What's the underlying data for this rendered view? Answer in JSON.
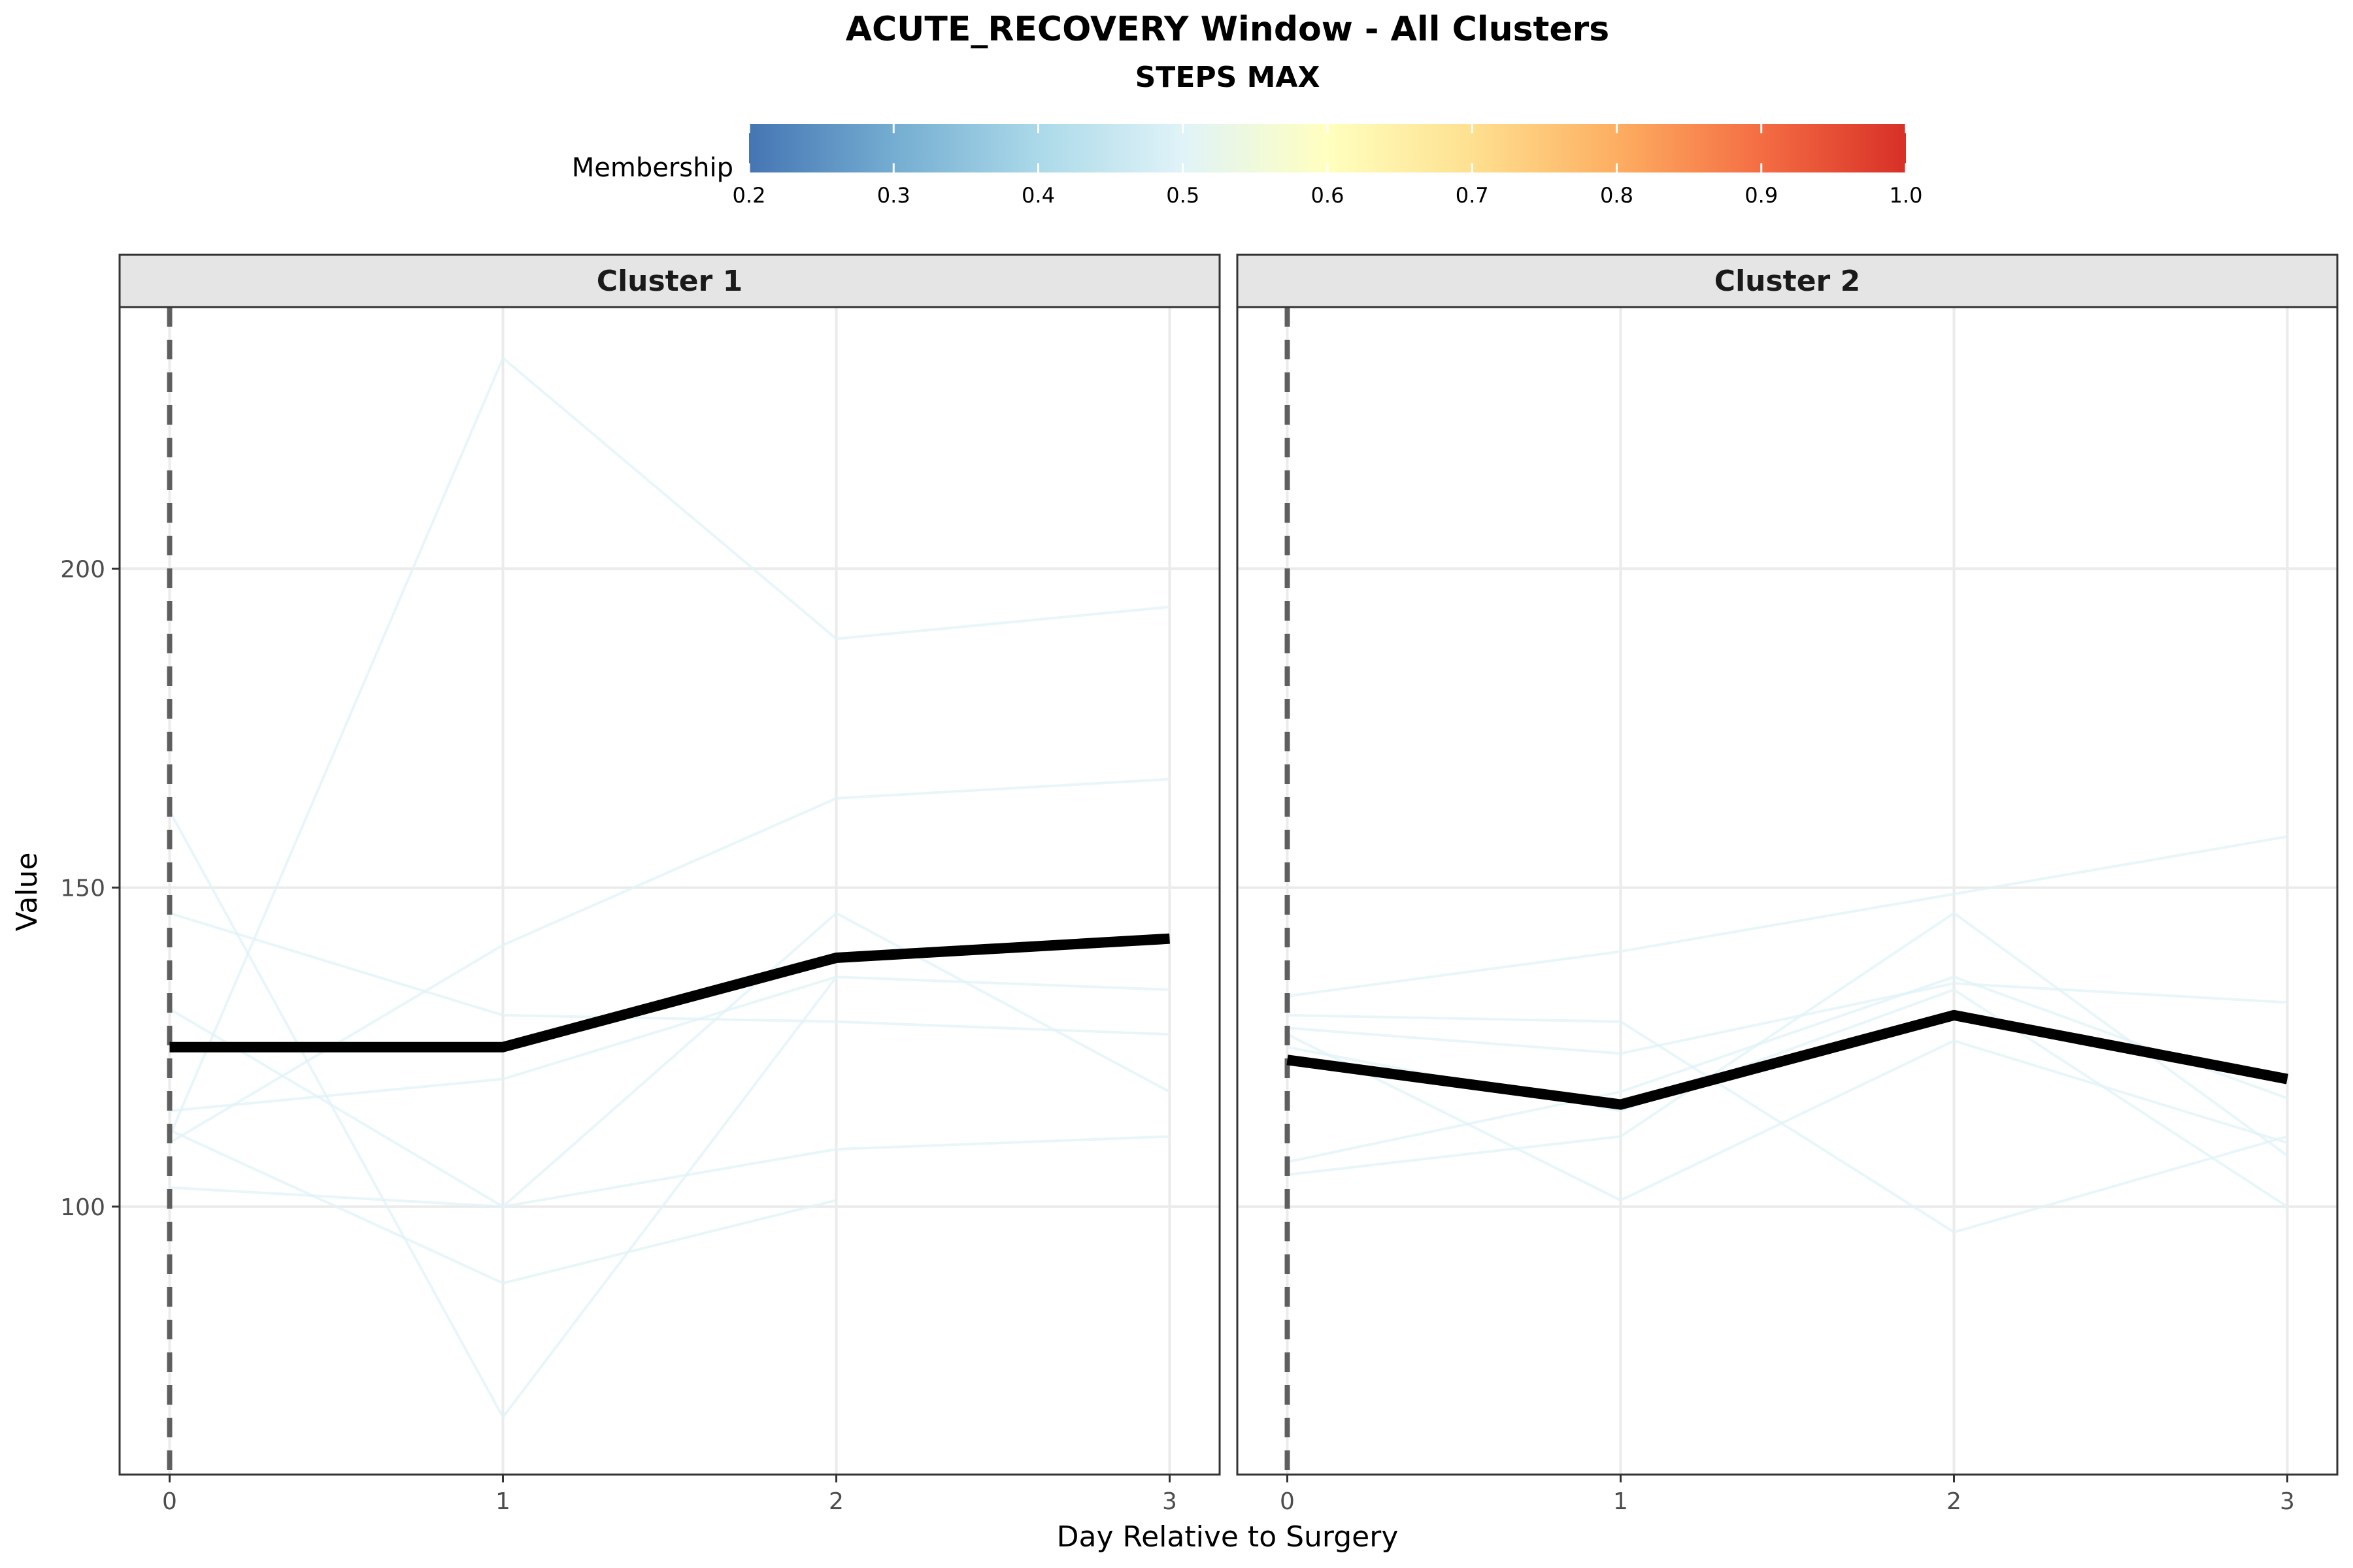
{
  "chart_data": {
    "type": "line",
    "title": "ACUTE_RECOVERY Window - All Clusters",
    "subtitle": "STEPS MAX",
    "xlabel": "Day Relative to Surgery",
    "ylabel": "Value",
    "xlim": [
      -0.15,
      3.15
    ],
    "ylim": [
      58,
      241
    ],
    "x_ticks": [
      0,
      1,
      2,
      3
    ],
    "y_ticks": [
      100,
      150,
      200
    ],
    "grid": true,
    "reference_line": {
      "x": 0,
      "style": "dashed",
      "color": "#5f5f5f"
    },
    "legend": {
      "title": "Membership",
      "position": "top",
      "type": "colorbar",
      "range": [
        0.2,
        1.0
      ],
      "ticks": [
        "0.2",
        "0.3",
        "0.4",
        "0.5",
        "0.6",
        "0.7",
        "0.8",
        "0.9",
        "1.0"
      ],
      "colors": [
        "#4575b4",
        "#74add1",
        "#abd9e9",
        "#e0f3f8",
        "#ffffbf",
        "#fee090",
        "#fdae61",
        "#f46d43",
        "#d73027"
      ]
    },
    "trajectory_color": "#e0f3f8",
    "panels": [
      {
        "name": "Cluster 1",
        "x": [
          0,
          1,
          2,
          3
        ],
        "centroid": [
          125,
          125,
          139,
          142
        ],
        "trajectories": [
          [
            111,
            233,
            189,
            194
          ],
          [
            110,
            141,
            164,
            167
          ],
          [
            146,
            130,
            129,
            127
          ],
          [
            115,
            120,
            136,
            134
          ],
          [
            131,
            100,
            146,
            118
          ],
          [
            103,
            100,
            109,
            111
          ],
          [
            112,
            88,
            101,
            null
          ],
          [
            162,
            67,
            136,
            null
          ]
        ]
      },
      {
        "name": "Cluster 2",
        "x": [
          0,
          1,
          2,
          3
        ],
        "centroid": [
          123,
          116,
          130,
          120
        ],
        "trajectories": [
          [
            133,
            140,
            149,
            158
          ],
          [
            128,
            124,
            135,
            132
          ],
          [
            107,
            118,
            136,
            117
          ],
          [
            130,
            129,
            96,
            111
          ],
          [
            105,
            111,
            146,
            108
          ],
          [
            125,
            115,
            134,
            100
          ],
          [
            127,
            101,
            126,
            110
          ]
        ]
      }
    ]
  }
}
